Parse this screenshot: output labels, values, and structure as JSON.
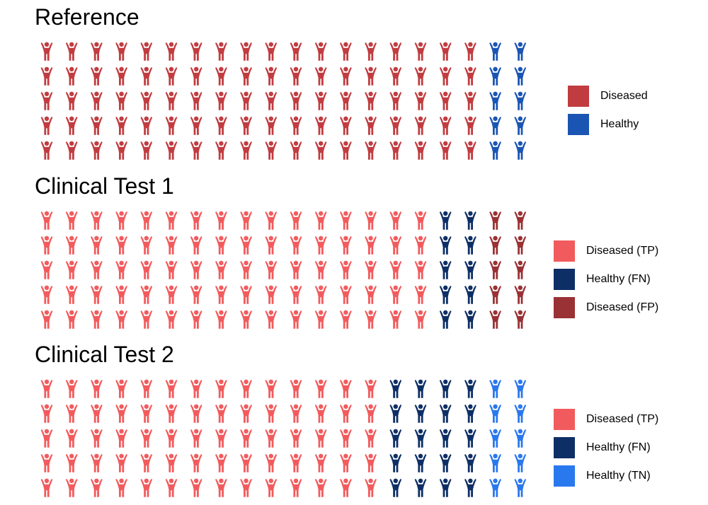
{
  "chart_data": [
    {
      "type": "pictogram",
      "title": "Reference",
      "rows": 5,
      "columns": 20,
      "icon": "person-arms-raised-icon",
      "column_groups": [
        {
          "name": "Diseased",
          "columns": 18,
          "color": "#c13c40"
        },
        {
          "name": "Healthy",
          "columns": 2,
          "color": "#1a55b3"
        }
      ],
      "counts": {
        "Diseased": 90,
        "Healthy": 10
      },
      "legend": {
        "placement": "right",
        "entries": [
          {
            "label": "Diseased",
            "color": "#c13c40"
          },
          {
            "label": "Healthy",
            "color": "#1a55b3"
          }
        ]
      }
    },
    {
      "type": "pictogram",
      "title": "Clinical Test 1",
      "rows": 5,
      "columns": 20,
      "icon": "person-arms-raised-icon",
      "column_groups": [
        {
          "name": "Diseased (TP)",
          "columns": 16,
          "color": "#f25b5d"
        },
        {
          "name": "Healthy (FN)",
          "columns": 2,
          "color": "#0e2f66"
        },
        {
          "name": "Diseased (FP)",
          "columns": 2,
          "color": "#9a3134"
        }
      ],
      "counts": {
        "Diseased (TP)": 80,
        "Healthy (FN)": 10,
        "Diseased (FP)": 10
      },
      "legend": {
        "placement": "right",
        "entries": [
          {
            "label": "Diseased (TP)",
            "color": "#f25b5d"
          },
          {
            "label": "Healthy (FN)",
            "color": "#0e2f66"
          },
          {
            "label": "Diseased (FP)",
            "color": "#9a3134"
          }
        ]
      }
    },
    {
      "type": "pictogram",
      "title": "Clinical Test 2",
      "rows": 5,
      "columns": 20,
      "icon": "person-arms-raised-icon",
      "column_groups": [
        {
          "name": "Diseased (TP)",
          "columns": 14,
          "color": "#f25b5d"
        },
        {
          "name": "Healthy (FN)",
          "columns": 4,
          "color": "#0e2f66"
        },
        {
          "name": "Healthy (TN)",
          "columns": 2,
          "color": "#2a78ee"
        }
      ],
      "counts": {
        "Diseased (TP)": 70,
        "Healthy (FN)": 20,
        "Healthy (TN)": 10
      },
      "legend": {
        "placement": "right",
        "entries": [
          {
            "label": "Diseased (TP)",
            "color": "#f25b5d"
          },
          {
            "label": "Healthy (FN)",
            "color": "#0e2f66"
          },
          {
            "label": "Healthy (TN)",
            "color": "#2a78ee"
          }
        ]
      }
    }
  ]
}
